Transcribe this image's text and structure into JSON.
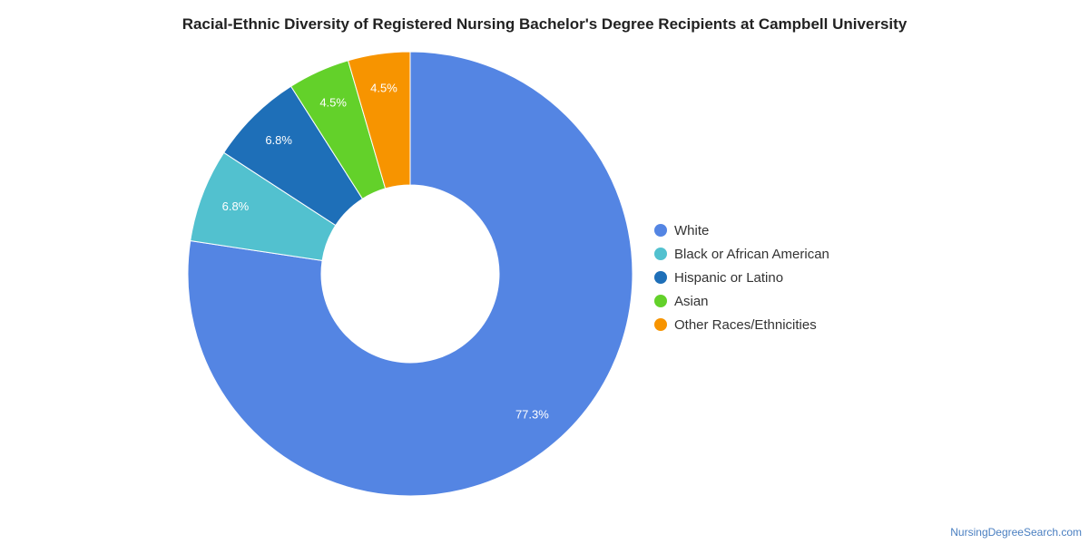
{
  "chart_data": {
    "type": "pie",
    "title": "Racial-Ethnic Diversity of Registered Nursing Bachelor's Degree Recipients at Campbell University",
    "donut": true,
    "legend_position": "right",
    "series": [
      {
        "name": "White",
        "value": 77.3,
        "label": "77.3%",
        "color": "#5485e3"
      },
      {
        "name": "Black or African American",
        "value": 6.8,
        "label": "6.8%",
        "color": "#52c1cf"
      },
      {
        "name": "Hispanic or Latino",
        "value": 6.8,
        "label": "6.8%",
        "color": "#1e6fb8"
      },
      {
        "name": "Asian",
        "value": 4.5,
        "label": "4.5%",
        "color": "#63d12a"
      },
      {
        "name": "Other Races/Ethnicities",
        "value": 4.5,
        "label": "4.5%",
        "color": "#f79400"
      }
    ]
  },
  "watermark": "NursingDegreeSearch.com"
}
